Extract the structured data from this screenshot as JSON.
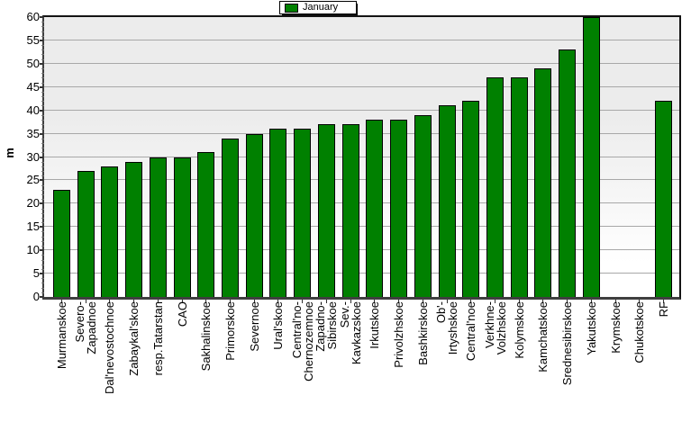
{
  "chart_data": {
    "type": "bar",
    "title": "",
    "legend_label": "January",
    "legend_position": "top-center",
    "ylabel": "m",
    "ylim": [
      0,
      60
    ],
    "ytick_step": 5,
    "ytick_labels": [
      "0",
      "5",
      "10",
      "15",
      "20",
      "25",
      "30",
      "35",
      "40",
      "45",
      "50",
      "55",
      "60"
    ],
    "grid": true,
    "categories": [
      "Murmanskoe",
      "Severo-Zapadnoe",
      "Dal'nevostochnoe",
      "Zabaykal'skoe",
      "resp.Tatarstan",
      "CAO",
      "Sakhalinskoe",
      "Primorskoe",
      "Severnoe",
      "Ural'skoe",
      "Central'no-Chernozemnoe",
      "Zapadno-Sibirskoe",
      "Sev.-Kavkazskoe",
      "Irkutskoe",
      "Privolzhskoe",
      "Bashkirskoe",
      "Ob'-Irtyshskoe",
      "Central'noe",
      "Verkhne-Volzhskoe",
      "Kolymskoe",
      "Kamchatskoe",
      "Srednesibirskoe",
      "Yakutskoe",
      "Krymskoe",
      "Chukotskoe",
      "RF"
    ],
    "category_label_lines": [
      [
        "Murmanskoe"
      ],
      [
        "Severo-",
        "Zapadnoe"
      ],
      [
        "Dal'nevostochnoe"
      ],
      [
        "Zabaykal'skoe"
      ],
      [
        "resp.Tatarstan"
      ],
      [
        "CAO"
      ],
      [
        "Sakhalinskoe"
      ],
      [
        "Primorskoe"
      ],
      [
        "Severnoe"
      ],
      [
        "Ural'skoe"
      ],
      [
        "Central'no-",
        "Chernozemnoe"
      ],
      [
        "Zapadno-",
        "Sibirskoe"
      ],
      [
        "Sev.-",
        "Kavkazskoe"
      ],
      [
        "Irkutskoe"
      ],
      [
        "Privolzhskoe"
      ],
      [
        "Bashkirskoe"
      ],
      [
        "Ob'-",
        "Irtyshskoe"
      ],
      [
        "Central'noe"
      ],
      [
        "Verkhne-",
        "Volzhskoe"
      ],
      [
        "Kolymskoe"
      ],
      [
        "Kamchatskoe"
      ],
      [
        "Srednesibirskoe"
      ],
      [
        "Yakutskoe"
      ],
      [
        "Krymskoe"
      ],
      [
        "Chukotskoe"
      ],
      [
        "RF"
      ]
    ],
    "values": [
      23,
      27,
      28,
      29,
      30,
      30,
      31,
      34,
      35,
      36,
      36,
      37,
      37,
      38,
      38,
      39,
      41,
      42,
      47,
      47,
      49,
      53,
      60,
      0,
      0,
      42
    ]
  },
  "colors": {
    "bar": "#008000",
    "grid": "#a8a8a8",
    "plot_bg_top": "#ececec",
    "plot_bg_bottom": "#ffffff",
    "axis": "#3f3f3f"
  }
}
